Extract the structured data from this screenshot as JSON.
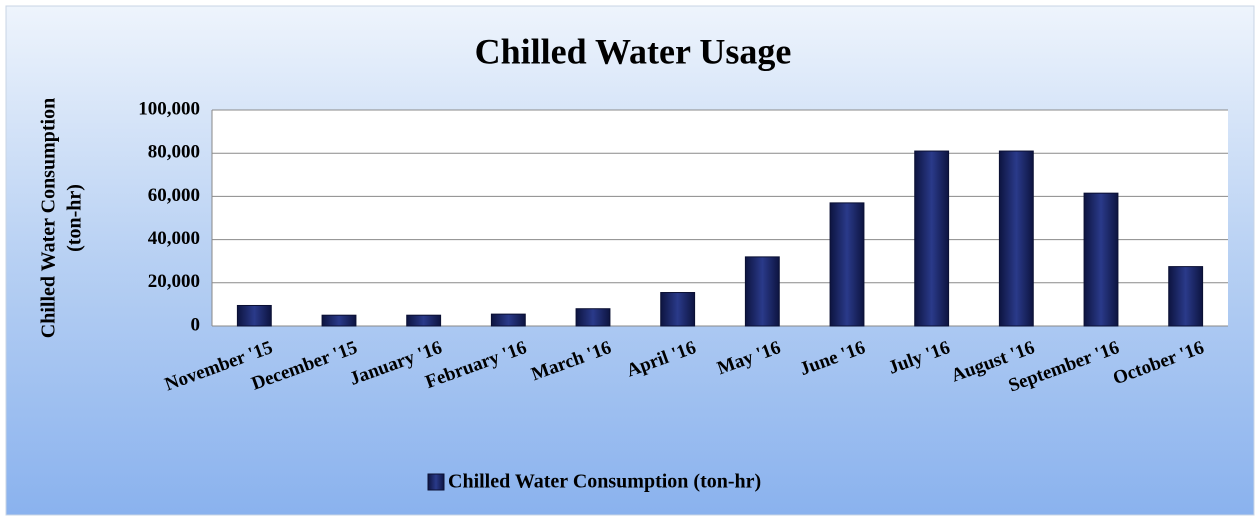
{
  "chart_data": {
    "type": "bar",
    "title": "Chilled Water Usage",
    "y_label": [
      "Chilled Water Consumption",
      "(ton-hr)"
    ],
    "categories": [
      "November '15",
      "December '15",
      "January '16",
      "February '16",
      "March '16",
      "April '16",
      "May '16",
      "June '16",
      "July '16",
      "August '16",
      "September '16",
      "October '16"
    ],
    "series": [
      {
        "name": "Chilled Water Consumption (ton-hr)",
        "color": "#1c2566",
        "values": [
          9500,
          5000,
          5000,
          5500,
          8000,
          15500,
          32000,
          57000,
          81000,
          81000,
          61500,
          27500
        ]
      }
    ],
    "ylim": [
      0,
      100000
    ],
    "yticks": [
      0,
      {
        "value": 20000,
        "label": "20,000"
      },
      {
        "value": 40000,
        "label": "40,000"
      },
      {
        "value": 60000,
        "label": "60,000"
      },
      {
        "value": 80000,
        "label": "80,000"
      },
      {
        "value": 100000,
        "label": "100,000"
      }
    ],
    "grid": true,
    "legend": "bottom"
  }
}
